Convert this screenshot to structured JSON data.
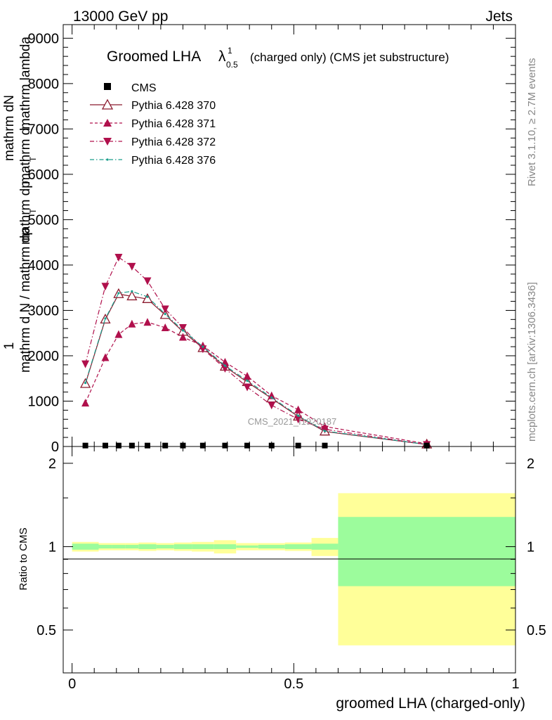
{
  "header": {
    "left": "13000 GeV pp",
    "right": "Jets"
  },
  "side_text": {
    "rivet": "Rivet 3.1.10, ≥ 2.7M events",
    "mcplots": "mcplots.cern.ch [arXiv:1306.3436]"
  },
  "watermark": "CMS_2021_I1920187",
  "chart_data": {
    "type": "line",
    "title": "Groomed LHA",
    "title_symbol": "λ",
    "title_sup": "1",
    "title_sub": "0.5",
    "title_suffix": "(charged only) (CMS jet substructure)",
    "xlabel": "groomed LHA (charged-only)",
    "ylabel": {
      "prefix": "1",
      "line1": "mathrm dN",
      "line2a": "mathrm d N / mathrm dp",
      "line2b": "mathrm dp",
      "line2c": "mathrm d",
      "line2d": "mathrm lambda",
      "sub_T": "T"
    },
    "ratio_ylabel": "Ratio to CMS",
    "xlim": [
      -0.02,
      1.0
    ],
    "ylim": [
      0,
      9300
    ],
    "ratio_ylim": [
      0.35,
      2.3
    ],
    "x_ticks": [
      0,
      0.5,
      1
    ],
    "x_tick_labels": [
      "0",
      "0.5",
      "1"
    ],
    "y_ticks": [
      0,
      1000,
      2000,
      3000,
      4000,
      5000,
      6000,
      7000,
      8000,
      9000
    ],
    "y_tick_labels": [
      "0",
      "1000",
      "2000",
      "3000",
      "4000",
      "5000",
      "6000",
      "7000",
      "8000",
      "9000"
    ],
    "ratio_ticks": [
      0.5,
      1,
      2
    ],
    "ratio_tick_labels": [
      "0.5",
      "1",
      "2"
    ],
    "bin_edges": [
      0,
      0.06,
      0.09,
      0.12,
      0.15,
      0.19,
      0.23,
      0.27,
      0.32,
      0.37,
      0.42,
      0.48,
      0.54,
      0.6,
      1.0
    ],
    "x_centers": [
      0.03,
      0.075,
      0.105,
      0.135,
      0.17,
      0.21,
      0.25,
      0.295,
      0.345,
      0.395,
      0.45,
      0.51,
      0.57,
      0.8
    ],
    "legend": [
      "CMS",
      "Pythia 6.428 370",
      "Pythia 6.428 371",
      "Pythia 6.428 372",
      "Pythia 6.428 376"
    ],
    "legend_position": "top-left",
    "data_series": {
      "name": "CMS",
      "values": [
        5,
        5,
        5,
        5,
        5,
        5,
        5,
        5,
        5,
        5,
        5,
        5,
        5,
        5
      ]
    },
    "series": [
      {
        "name": "Pythia 6.428 370",
        "color": "#8b1a2e",
        "style": "solid",
        "marker": "triangle-up-open",
        "values": [
          1380,
          2800,
          3360,
          3310,
          3250,
          2900,
          2530,
          2170,
          1760,
          1420,
          1060,
          660,
          330,
          45
        ]
      },
      {
        "name": "Pythia 6.428 371",
        "color": "#b0104c",
        "style": "dashed",
        "marker": "triangle-up",
        "values": [
          960,
          1960,
          2470,
          2700,
          2740,
          2620,
          2410,
          2220,
          1860,
          1550,
          1120,
          810,
          440,
          60
        ]
      },
      {
        "name": "Pythia 6.428 372",
        "color": "#b0104c",
        "style": "dashdot",
        "marker": "triangle-down",
        "values": [
          1820,
          3530,
          4170,
          3970,
          3650,
          3030,
          2620,
          2150,
          1720,
          1310,
          910,
          600,
          380,
          40
        ]
      },
      {
        "name": "Pythia 6.428 376",
        "color": "#1a9e8c",
        "style": "dashdot",
        "marker": "dot",
        "values": [
          1400,
          2820,
          3380,
          3420,
          3300,
          2920,
          2560,
          2200,
          1780,
          1450,
          1080,
          680,
          340,
          45
        ]
      }
    ],
    "ratio_bands": {
      "stat_half_width": [
        0.025,
        0.015,
        0.015,
        0.015,
        0.02,
        0.015,
        0.02,
        0.02,
        0.02,
        0.01,
        0.015,
        0.02,
        0.025,
        0.28
      ],
      "total_half_width": [
        0.04,
        0.03,
        0.03,
        0.03,
        0.035,
        0.03,
        0.035,
        0.04,
        0.055,
        0.03,
        0.03,
        0.035,
        0.075,
        0.56
      ],
      "stat_color": "#9cfc9c",
      "total_color": "#ffff99"
    }
  }
}
